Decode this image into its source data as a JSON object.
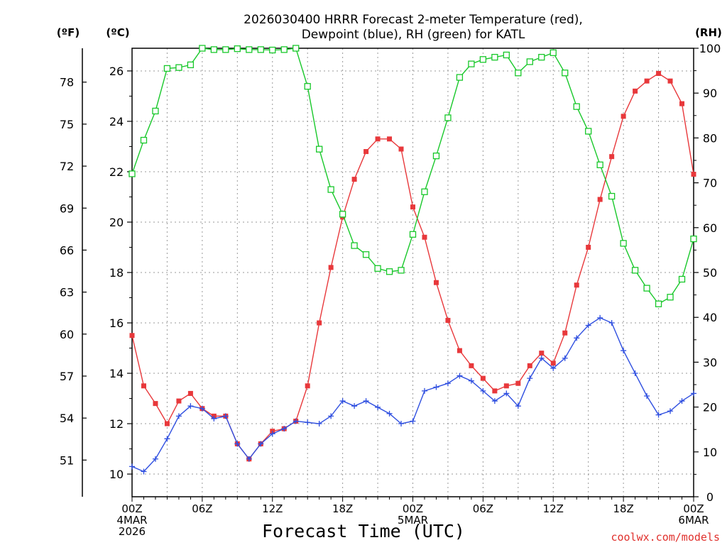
{
  "chart_data": {
    "type": "line",
    "title_line1": "2026030400 HRRR Forecast 2-meter Temperature (red),",
    "title_line2": "Dewpoint (blue), RH (green) for KATL",
    "xlabel": "Forecast Time (UTC)",
    "units": {
      "fahrenheit": "(ºF)",
      "celsius": "(ºC)",
      "rh": "(RH)"
    },
    "credit": "coolwx.com/models",
    "x_range": [
      0,
      48
    ],
    "celsius_range": [
      9.1,
      26.9
    ],
    "rh_range": [
      0,
      100
    ],
    "fahrenheit_ticks": [
      "51",
      "54",
      "57",
      "60",
      "63",
      "66",
      "69",
      "72",
      "75",
      "78"
    ],
    "celsius_ticks": [
      "10",
      "12",
      "14",
      "16",
      "18",
      "20",
      "22",
      "24",
      "26"
    ],
    "rh_ticks": [
      "0",
      "10",
      "20",
      "30",
      "40",
      "50",
      "60",
      "70",
      "80",
      "90",
      "100"
    ],
    "x_ticks": [
      {
        "hour": 0,
        "lines": [
          "00Z",
          "4MAR",
          "2026"
        ]
      },
      {
        "hour": 6,
        "lines": [
          "06Z"
        ]
      },
      {
        "hour": 12,
        "lines": [
          "12Z"
        ]
      },
      {
        "hour": 18,
        "lines": [
          "18Z"
        ]
      },
      {
        "hour": 24,
        "lines": [
          "00Z",
          "5MAR"
        ]
      },
      {
        "hour": 30,
        "lines": [
          "06Z"
        ]
      },
      {
        "hour": 36,
        "lines": [
          "12Z"
        ]
      },
      {
        "hour": 42,
        "lines": [
          "18Z"
        ]
      },
      {
        "hour": 48,
        "lines": [
          "00Z",
          "6MAR"
        ]
      }
    ],
    "series": [
      {
        "name": "Temperature",
        "units": "C",
        "color": "#e8383b",
        "marker": "filled-square",
        "axis": "celsius",
        "values": [
          15.5,
          13.5,
          12.8,
          12.0,
          12.9,
          13.2,
          12.6,
          12.3,
          12.3,
          11.2,
          10.6,
          11.2,
          11.7,
          11.8,
          12.1,
          13.5,
          16.0,
          18.2,
          20.2,
          21.7,
          22.8,
          23.3,
          23.3,
          22.9,
          20.6,
          19.4,
          17.6,
          16.1,
          14.9,
          14.3,
          13.8,
          13.3,
          13.5,
          13.6,
          14.3,
          14.8,
          14.4,
          15.6,
          17.5,
          19.0,
          20.9,
          22.6,
          24.2,
          25.2,
          25.6,
          25.9,
          25.6,
          24.7,
          21.9
        ]
      },
      {
        "name": "Dewpoint",
        "units": "C",
        "color": "#2f4fe0",
        "marker": "plus",
        "axis": "celsius",
        "values": [
          10.3,
          10.1,
          10.6,
          11.4,
          12.3,
          12.7,
          12.6,
          12.2,
          12.3,
          11.2,
          10.6,
          11.2,
          11.6,
          11.8,
          12.1,
          12.05,
          12.0,
          12.3,
          12.9,
          12.7,
          12.9,
          12.65,
          12.4,
          12.0,
          12.1,
          13.3,
          13.45,
          13.6,
          13.9,
          13.7,
          13.3,
          12.9,
          13.2,
          12.7,
          13.8,
          14.6,
          14.2,
          14.6,
          15.4,
          15.9,
          16.2,
          16.0,
          14.9,
          14.0,
          13.1,
          12.35,
          12.5,
          12.9,
          13.2
        ]
      },
      {
        "name": "Relative Humidity",
        "units": "%",
        "color": "#18c82a",
        "marker": "open-square",
        "axis": "rh",
        "values": [
          72,
          79.5,
          86,
          95.5,
          95.7,
          96.3,
          100,
          99.7,
          99.7,
          99.9,
          99.7,
          99.7,
          99.6,
          99.7,
          100,
          91.5,
          77.5,
          68.5,
          63,
          56,
          54,
          50.9,
          50.2,
          50.5,
          58.5,
          68,
          76,
          84.5,
          93.5,
          96.5,
          97.5,
          98,
          98.5,
          94.5,
          97,
          98,
          99,
          94.5,
          87,
          81.5,
          74,
          67,
          56.5,
          50.5,
          46.5,
          43,
          44.5,
          48.5,
          57.5
        ]
      }
    ]
  }
}
